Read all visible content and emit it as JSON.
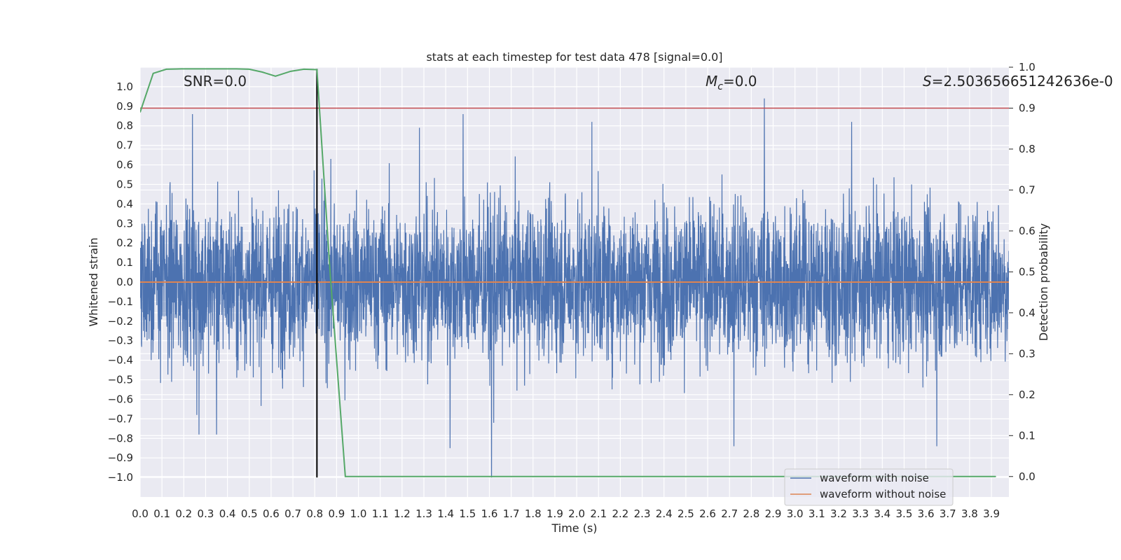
{
  "chart_data": {
    "type": "line",
    "title": "stats at each timestep for test data 478 [signal=0.0]",
    "xlabel": "Time (s)",
    "ylabel": "Whitened strain",
    "ylabel_right": "Detection probability",
    "xlim": [
      0.0,
      3.98
    ],
    "ylim": [
      -1.1,
      1.1
    ],
    "ylim_right": [
      -0.05,
      1.0
    ],
    "x_ticks": [
      0.0,
      0.1,
      0.2,
      0.3,
      0.4,
      0.5,
      0.6,
      0.7,
      0.8,
      0.9,
      1.0,
      1.1,
      1.2,
      1.3,
      1.4,
      1.5,
      1.6,
      1.7,
      1.8,
      1.9,
      2.0,
      2.1,
      2.2,
      2.3,
      2.4,
      2.5,
      2.6,
      2.7,
      2.8,
      2.9,
      3.0,
      3.1,
      3.2,
      3.3,
      3.4,
      3.5,
      3.6,
      3.7,
      3.8,
      3.9
    ],
    "x_tick_labels": [
      "0.0",
      "0.1",
      "0.2",
      "0.3",
      "0.4",
      "0.5",
      "0.6",
      "0.7",
      "0.8",
      "0.9",
      "1.0",
      "1.1",
      "1.2",
      "1.3",
      "1.4",
      "1.5",
      "1.6",
      "1.7",
      "1.8",
      "1.9",
      "2.0",
      "2.1",
      "2.2",
      "2.3",
      "2.4",
      "2.5",
      "2.6",
      "2.7",
      "2.8",
      "2.9",
      "3.0",
      "3.1",
      "3.2",
      "3.3",
      "3.4",
      "3.5",
      "3.6",
      "3.7",
      "3.8",
      "3.9"
    ],
    "y_ticks": [
      1.0,
      0.9,
      0.8,
      0.7,
      0.6,
      0.5,
      0.4,
      0.3,
      0.2,
      0.1,
      0.0,
      -0.1,
      -0.2,
      -0.3,
      -0.4,
      -0.5,
      -0.6,
      -0.7,
      -0.8,
      -0.9,
      -1.0
    ],
    "y_tick_labels": [
      "1.0",
      "0.9",
      "0.8",
      "0.7",
      "0.6",
      "0.5",
      "0.4",
      "0.3",
      "0.2",
      "0.1",
      "0.0",
      "−0.1",
      "−0.2",
      "−0.3",
      "−0.4",
      "−0.5",
      "−0.6",
      "−0.7",
      "−0.8",
      "−0.9",
      "−1.0"
    ],
    "y_ticks_right": [
      1.0,
      0.9,
      0.8,
      0.7,
      0.6,
      0.5,
      0.4,
      0.3,
      0.2,
      0.1,
      0.0
    ],
    "y_tick_labels_right": [
      "1.0",
      "0.9",
      "0.8",
      "0.7",
      "0.6",
      "0.5",
      "0.4",
      "0.3",
      "0.2",
      "0.1",
      "0.0"
    ],
    "series": [
      {
        "name": "waveform with noise",
        "color": "#4c72b0",
        "kind": "noise",
        "spikes": [
          {
            "x": 0.24,
            "y": 0.86
          },
          {
            "x": 0.26,
            "y": -0.68
          },
          {
            "x": 0.27,
            "y": -0.78
          },
          {
            "x": 0.35,
            "y": -0.78
          },
          {
            "x": 1.28,
            "y": 0.79
          },
          {
            "x": 1.42,
            "y": -0.85
          },
          {
            "x": 1.48,
            "y": 0.86
          },
          {
            "x": 1.61,
            "y": -1.0
          },
          {
            "x": 1.62,
            "y": -0.72
          },
          {
            "x": 2.07,
            "y": 0.82
          },
          {
            "x": 2.72,
            "y": -0.84
          },
          {
            "x": 2.86,
            "y": 0.94
          },
          {
            "x": 3.26,
            "y": 0.82
          },
          {
            "x": 3.65,
            "y": -0.84
          }
        ]
      },
      {
        "name": "waveform without noise",
        "color": "#dd8452",
        "x": [
          0.0,
          3.98
        ],
        "y": [
          0.0,
          0.0
        ]
      },
      {
        "name": "detection probability",
        "color": "#55a868",
        "axis": "right",
        "x": [
          0.0,
          0.06,
          0.12,
          0.19,
          0.25,
          0.31,
          0.37,
          0.44,
          0.5,
          0.56,
          0.62,
          0.69,
          0.75,
          0.81,
          0.87,
          0.94,
          3.92
        ],
        "y": [
          0.89,
          0.985,
          0.995,
          0.996,
          0.996,
          0.996,
          0.996,
          0.996,
          0.995,
          0.988,
          0.978,
          0.99,
          0.995,
          0.994,
          0.5,
          0.0,
          0.0
        ]
      }
    ],
    "threshold": {
      "value": 0.9,
      "axis": "right",
      "color": "#c44e52"
    },
    "marker_line": {
      "x": 0.81,
      "color": "#000000"
    },
    "annotations": [
      {
        "id": "snr",
        "text": "SNR=0.0"
      },
      {
        "id": "mc",
        "text": "M_c=0.0",
        "main": "M",
        "sub": "c",
        "rest": "=0.0"
      },
      {
        "id": "s",
        "text": "S=2.503656651242636e-0",
        "main": "S",
        "rest": "=2.503656651242636e-0"
      }
    ],
    "legend": {
      "location": "lower-right",
      "entries": [
        {
          "label": "waveform with noise",
          "color": "#4c72b0"
        },
        {
          "label": "waveform without noise",
          "color": "#dd8452"
        }
      ]
    },
    "grid": true,
    "colors": {
      "axes_background": "#eaeaf2",
      "grid": "#ffffff"
    }
  }
}
